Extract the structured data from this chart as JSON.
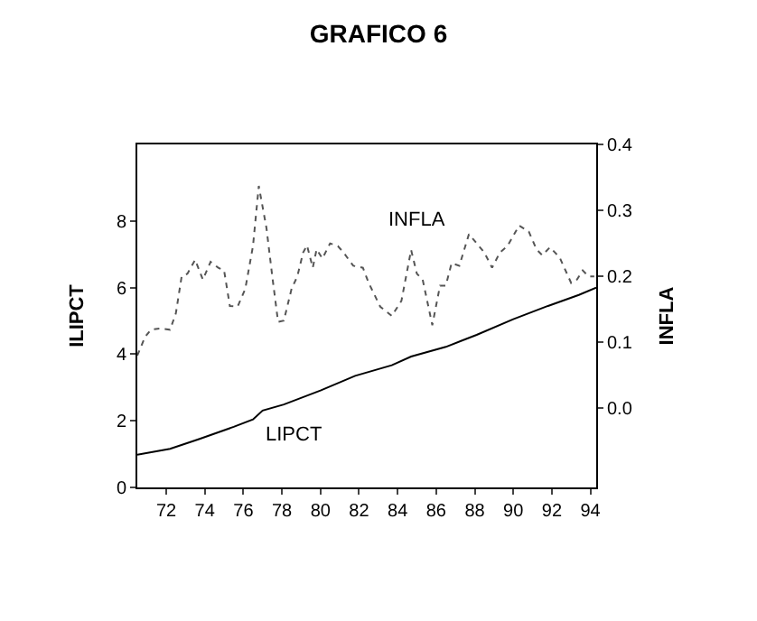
{
  "chart_data": {
    "type": "line",
    "title": "GRAFICO 6",
    "ylabel": "ILIPCT",
    "y2label": "INFLA",
    "xlim": [
      70.5,
      94.3
    ],
    "xticks": [
      72,
      74,
      76,
      78,
      80,
      82,
      84,
      86,
      88,
      90,
      92,
      94
    ],
    "ylim": [
      0,
      10.3
    ],
    "yticks": [
      0,
      2,
      4,
      6,
      8
    ],
    "y2lim": [
      -0.12,
      0.4
    ],
    "y2ticks": [
      {
        "value": 0,
        "label": "0.0"
      },
      0.1,
      0.2,
      0.3,
      0.4
    ],
    "legend": false,
    "marker": "none",
    "series": [
      {
        "name": "INFLA",
        "color": "#555555",
        "axis": "y2",
        "line_style": "dotted",
        "x": [
          70.5,
          70.9,
          71.2,
          71.7,
          72.2,
          72.5,
          72.8,
          73.1,
          73.5,
          73.9,
          74.3,
          74.7,
          75.0,
          75.3,
          75.7,
          76.1,
          76.5,
          76.8,
          77.2,
          77.5,
          77.8,
          78.1,
          78.5,
          78.8,
          79.1,
          79.3,
          79.6,
          79.8,
          80.1,
          80.5,
          80.9,
          81.2,
          81.7,
          82.2,
          82.5,
          83.1,
          83.7,
          84.2,
          84.7,
          85.0,
          85.3,
          85.8,
          86.2,
          86.5,
          86.8,
          87.2,
          87.7,
          88.1,
          88.5,
          88.9,
          89.3,
          89.7,
          90.3,
          90.8,
          91.2,
          91.5,
          91.9,
          92.4,
          93.0,
          93.3,
          93.6,
          93.9,
          94.2
        ],
        "values": [
          0.08,
          0.108,
          0.119,
          0.121,
          0.119,
          0.144,
          0.2,
          0.204,
          0.225,
          0.195,
          0.222,
          0.213,
          0.209,
          0.155,
          0.154,
          0.181,
          0.246,
          0.337,
          0.273,
          0.2,
          0.131,
          0.133,
          0.181,
          0.2,
          0.236,
          0.247,
          0.213,
          0.241,
          0.227,
          0.25,
          0.246,
          0.236,
          0.216,
          0.213,
          0.19,
          0.154,
          0.14,
          0.163,
          0.24,
          0.204,
          0.195,
          0.126,
          0.186,
          0.186,
          0.22,
          0.216,
          0.264,
          0.25,
          0.236,
          0.213,
          0.236,
          0.246,
          0.277,
          0.268,
          0.241,
          0.232,
          0.244,
          0.229,
          0.19,
          0.195,
          0.209,
          0.2,
          0.2
        ]
      },
      {
        "name": "LIPCT",
        "color": "#000000",
        "line_style": "solid",
        "x": [
          70.5,
          72.2,
          73.7,
          75.5,
          76.5,
          77.0,
          78.1,
          80.0,
          81.8,
          83.7,
          84.7,
          86.5,
          88.1,
          90.0,
          91.8,
          93.4,
          94.3
        ],
        "values": [
          0.98,
          1.16,
          1.45,
          1.82,
          2.04,
          2.31,
          2.49,
          2.91,
          3.35,
          3.67,
          3.93,
          4.22,
          4.58,
          5.05,
          5.45,
          5.78,
          6.0
        ]
      }
    ]
  }
}
